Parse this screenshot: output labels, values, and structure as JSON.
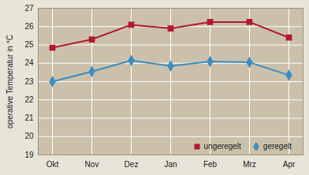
{
  "chart_data": {
    "type": "line",
    "y_label": "operative Temperatur in °C",
    "categories": [
      "Okt",
      "Nov",
      "Dez",
      "Jan",
      "Feb",
      "Mrz",
      "Apr"
    ],
    "series": [
      {
        "name": "ungeregelt",
        "color": "#b3192e",
        "marker": "square",
        "values": [
          24.85,
          25.3,
          26.1,
          25.9,
          26.25,
          26.25,
          25.4
        ]
      },
      {
        "name": "geregelt",
        "color": "#3d8cc4",
        "marker": "diamond",
        "values": [
          23.0,
          23.55,
          24.15,
          23.85,
          24.1,
          24.05,
          23.35
        ]
      }
    ],
    "ylim": [
      19,
      27
    ],
    "yticks": [
      19,
      20,
      21,
      22,
      23,
      24,
      25,
      26,
      27
    ],
    "grid": true,
    "legend": "lower right"
  }
}
